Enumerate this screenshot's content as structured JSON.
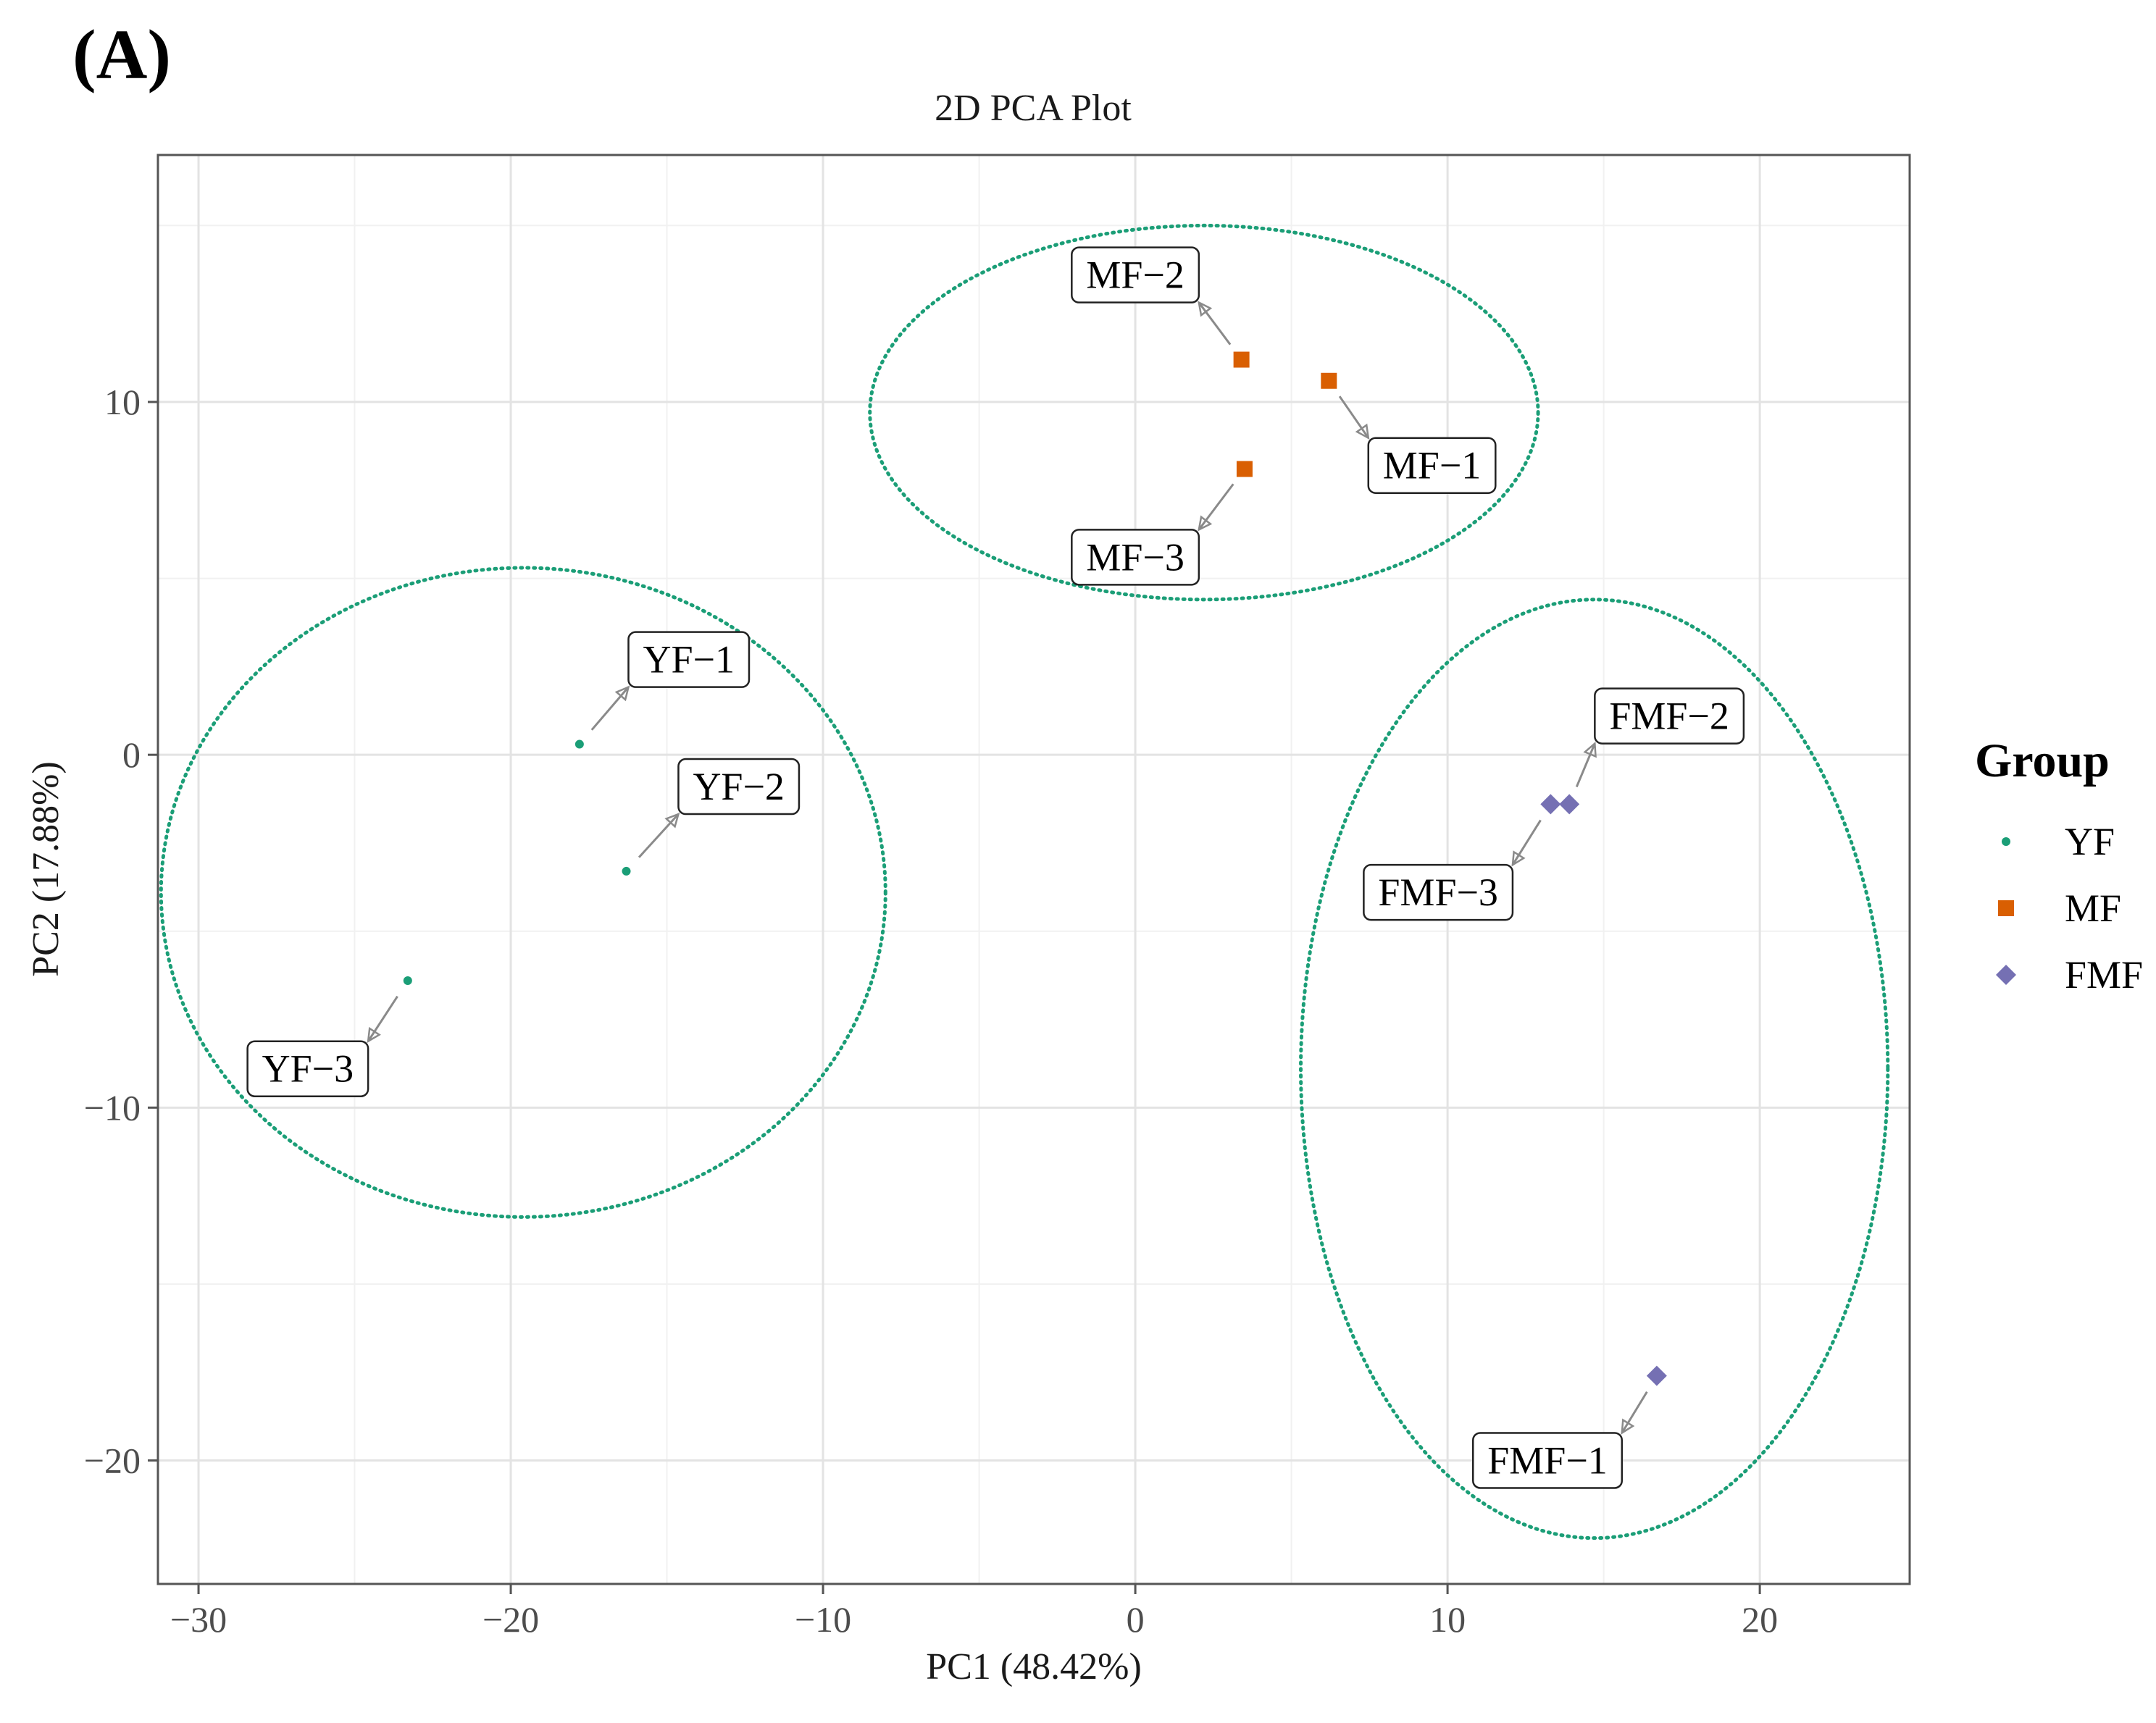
{
  "panel_label": "(A)",
  "chart_data": {
    "type": "scatter",
    "title": "2D PCA Plot",
    "xlabel": "PC1 (48.42%)",
    "ylabel": "PC2 (17.88%)",
    "xlim": [
      -31.3,
      24.8
    ],
    "ylim": [
      -23.5,
      17.0
    ],
    "xticks": [
      -30,
      -20,
      -10,
      0,
      10,
      20
    ],
    "xtick_labels": [
      "−30",
      "−20",
      "−10",
      "0",
      "10",
      "20"
    ],
    "yticks": [
      -20,
      -10,
      0,
      10
    ],
    "ytick_labels": [
      "−20",
      "−10",
      "0",
      "10"
    ],
    "grid": true,
    "legend": {
      "title": "Group",
      "placement": "right",
      "entries": [
        {
          "label": "YF",
          "shape": "circle",
          "color": "#1b9e77"
        },
        {
          "label": "MF",
          "shape": "square",
          "color": "#d95f02"
        },
        {
          "label": "FMF",
          "shape": "diamond",
          "color": "#7570b3"
        }
      ]
    },
    "ellipse_color": "#1b9e77",
    "series": [
      {
        "name": "YF",
        "color": "#1b9e77",
        "shape": "circle",
        "points": [
          {
            "label": "YF−1",
            "x": -17.8,
            "y": 0.3,
            "label_x": -14.3,
            "label_y": 2.7
          },
          {
            "label": "YF−2",
            "x": -16.3,
            "y": -3.3,
            "label_x": -12.7,
            "label_y": -0.9
          },
          {
            "label": "YF−3",
            "x": -23.3,
            "y": -6.4,
            "label_x": -26.5,
            "label_y": -8.9
          }
        ],
        "ellipse": {
          "cx": -19.6,
          "cy": -3.9,
          "rx": 11.6,
          "ry": 9.2
        }
      },
      {
        "name": "MF",
        "color": "#d95f02",
        "shape": "square",
        "points": [
          {
            "label": "MF−1",
            "x": 6.2,
            "y": 10.6,
            "label_x": 9.5,
            "label_y": 8.2
          },
          {
            "label": "MF−2",
            "x": 3.4,
            "y": 11.2,
            "label_x": 0.0,
            "label_y": 13.6
          },
          {
            "label": "MF−3",
            "x": 3.5,
            "y": 8.1,
            "label_x": 0.0,
            "label_y": 5.6
          }
        ],
        "ellipse": {
          "cx": 2.2,
          "cy": 9.7,
          "rx": 10.7,
          "ry": 5.3
        }
      },
      {
        "name": "FMF",
        "color": "#7570b3",
        "shape": "diamond",
        "points": [
          {
            "label": "FMF−1",
            "x": 16.7,
            "y": -17.6,
            "label_x": 13.2,
            "label_y": -20.0
          },
          {
            "label": "FMF−2",
            "x": 13.9,
            "y": -1.4,
            "label_x": 17.1,
            "label_y": 1.1
          },
          {
            "label": "FMF−3",
            "x": 13.3,
            "y": -1.4,
            "label_x": 9.7,
            "label_y": -3.9
          }
        ],
        "ellipse": {
          "cx": 14.7,
          "cy": -8.9,
          "rx": 9.4,
          "ry": 13.3
        }
      }
    ]
  }
}
